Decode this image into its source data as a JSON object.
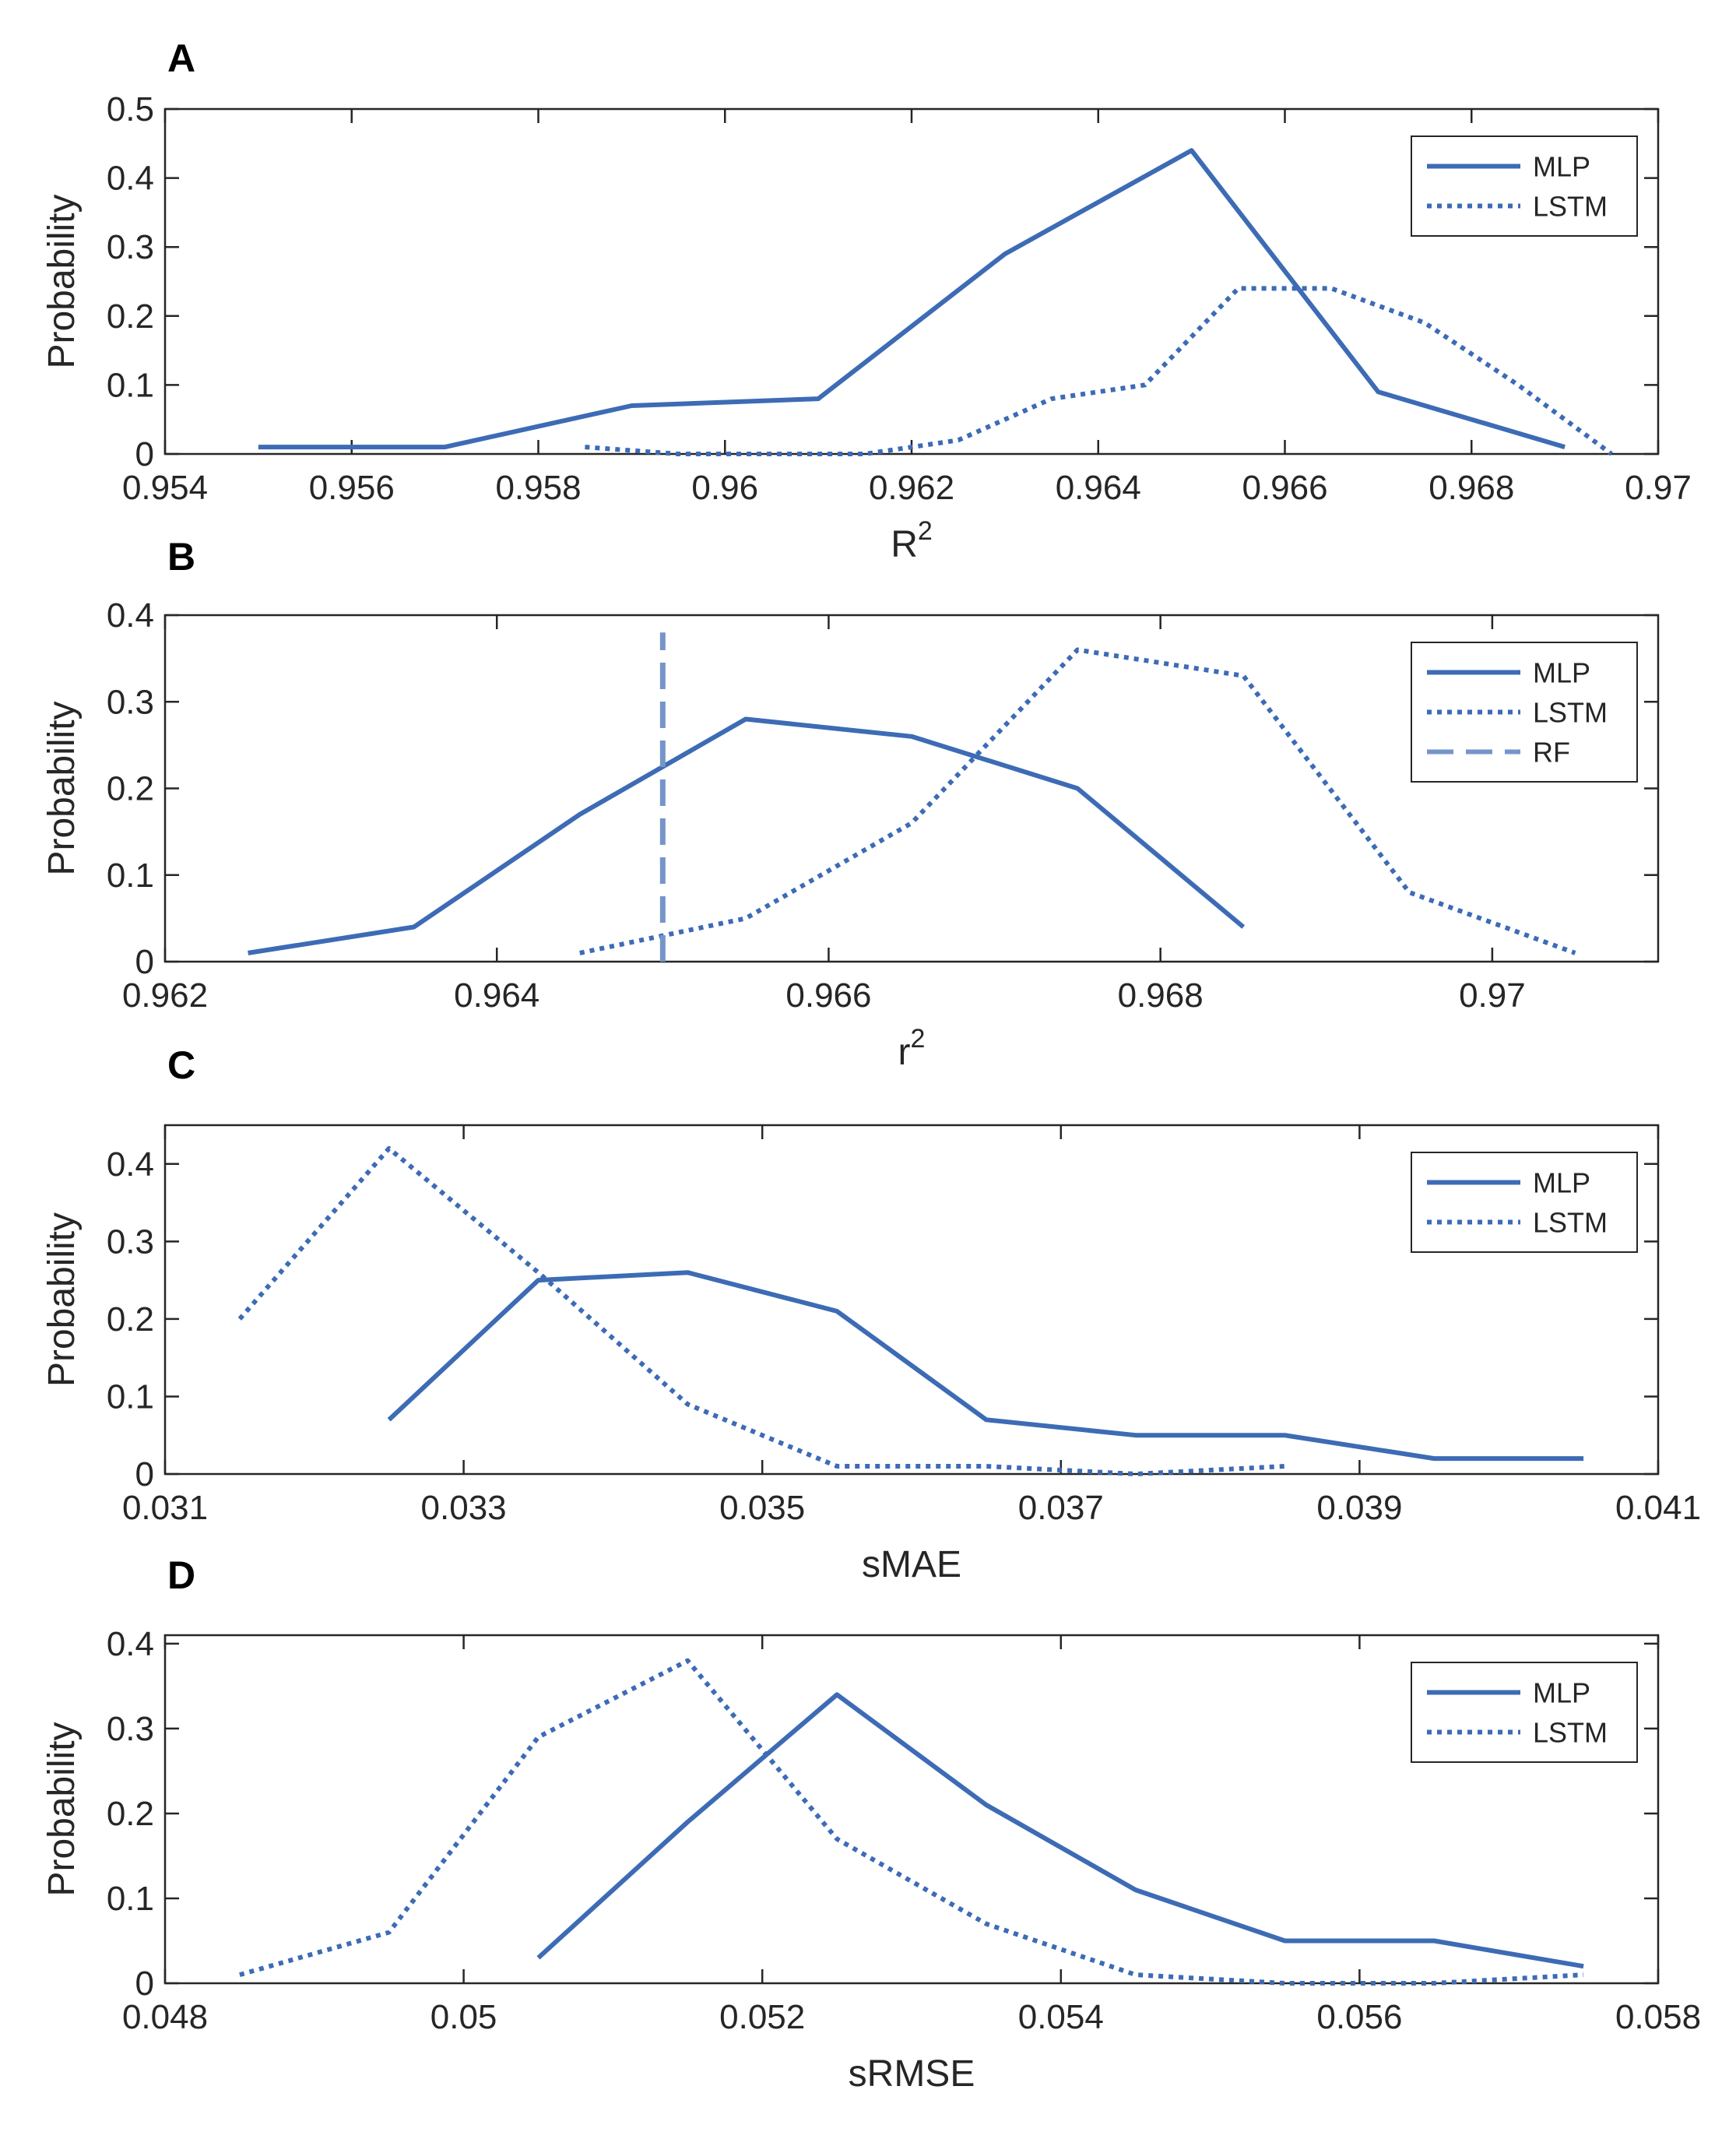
{
  "figure": {
    "name": "probability-distributions-figure"
  },
  "colors": {
    "series": "#3d6bb5",
    "rf": "#7595ca",
    "axis": "#262626"
  },
  "chart_data": [
    {
      "panel": "A",
      "type": "line",
      "xlabel": "R",
      "xlabel_sup": "2",
      "ylabel": "Probability",
      "xlim": [
        0.954,
        0.97
      ],
      "ylim": [
        0,
        0.5
      ],
      "xticks": [
        {
          "v": 0.954,
          "label": "0.954"
        },
        {
          "v": 0.956,
          "label": "0.956"
        },
        {
          "v": 0.958,
          "label": "0.958"
        },
        {
          "v": 0.96,
          "label": "0.96"
        },
        {
          "v": 0.962,
          "label": "0.962"
        },
        {
          "v": 0.964,
          "label": "0.964"
        },
        {
          "v": 0.966,
          "label": "0.966"
        },
        {
          "v": 0.968,
          "label": "0.968"
        },
        {
          "v": 0.97,
          "label": "0.97"
        }
      ],
      "yticks": [
        {
          "v": 0,
          "label": "0"
        },
        {
          "v": 0.1,
          "label": "0.1"
        },
        {
          "v": 0.2,
          "label": "0.2"
        },
        {
          "v": 0.3,
          "label": "0.3"
        },
        {
          "v": 0.4,
          "label": "0.4"
        },
        {
          "v": 0.5,
          "label": "0.5"
        }
      ],
      "legend": "top-right",
      "series": [
        {
          "name": "MLP",
          "style": "solid",
          "x": [
            0.955,
            0.957,
            0.959,
            0.961,
            0.963,
            0.965,
            0.967,
            0.969
          ],
          "y": [
            0.01,
            0.01,
            0.07,
            0.08,
            0.29,
            0.44,
            0.09,
            0.01
          ]
        },
        {
          "name": "LSTM",
          "style": "dotted",
          "x": [
            0.9585,
            0.9595,
            0.9605,
            0.9615,
            0.9625,
            0.9635,
            0.9645,
            0.9655,
            0.9665,
            0.9675,
            0.9685,
            0.9695
          ],
          "y": [
            0.01,
            0.0,
            0.0,
            0.0,
            0.02,
            0.08,
            0.1,
            0.24,
            0.24,
            0.19,
            0.1,
            0.0
          ]
        }
      ]
    },
    {
      "panel": "B",
      "type": "line",
      "xlabel": "r",
      "xlabel_sup": "2",
      "ylabel": "Probability",
      "xlim": [
        0.962,
        0.971
      ],
      "ylim": [
        0,
        0.4
      ],
      "xticks": [
        {
          "v": 0.962,
          "label": "0.962"
        },
        {
          "v": 0.964,
          "label": "0.964"
        },
        {
          "v": 0.966,
          "label": "0.966"
        },
        {
          "v": 0.968,
          "label": "0.968"
        },
        {
          "v": 0.97,
          "label": "0.97"
        }
      ],
      "yticks": [
        {
          "v": 0,
          "label": "0"
        },
        {
          "v": 0.1,
          "label": "0.1"
        },
        {
          "v": 0.2,
          "label": "0.2"
        },
        {
          "v": 0.3,
          "label": "0.3"
        },
        {
          "v": 0.4,
          "label": "0.4"
        }
      ],
      "legend": "top-right",
      "series": [
        {
          "name": "MLP",
          "style": "solid",
          "x": [
            0.9625,
            0.9635,
            0.9645,
            0.9655,
            0.9665,
            0.9675,
            0.9685
          ],
          "y": [
            0.01,
            0.04,
            0.17,
            0.28,
            0.26,
            0.2,
            0.04
          ]
        },
        {
          "name": "LSTM",
          "style": "dotted",
          "x": [
            0.9645,
            0.9655,
            0.9665,
            0.9675,
            0.9685,
            0.9695,
            0.9705
          ],
          "y": [
            0.01,
            0.05,
            0.16,
            0.36,
            0.33,
            0.08,
            0.01
          ]
        },
        {
          "name": "RF",
          "style": "dashed",
          "vline": 0.965,
          "vline_top": 0.38
        }
      ]
    },
    {
      "panel": "C",
      "type": "line",
      "xlabel": "sMAE",
      "xlabel_sup": "",
      "ylabel": "Probability",
      "xlim": [
        0.031,
        0.041
      ],
      "ylim": [
        0,
        0.45
      ],
      "xticks": [
        {
          "v": 0.031,
          "label": "0.031"
        },
        {
          "v": 0.033,
          "label": "0.033"
        },
        {
          "v": 0.035,
          "label": "0.035"
        },
        {
          "v": 0.037,
          "label": "0.037"
        },
        {
          "v": 0.039,
          "label": "0.039"
        },
        {
          "v": 0.041,
          "label": "0.041"
        }
      ],
      "yticks": [
        {
          "v": 0,
          "label": "0"
        },
        {
          "v": 0.1,
          "label": "0.1"
        },
        {
          "v": 0.2,
          "label": "0.2"
        },
        {
          "v": 0.3,
          "label": "0.3"
        },
        {
          "v": 0.4,
          "label": "0.4"
        }
      ],
      "legend": "top-right",
      "series": [
        {
          "name": "MLP",
          "style": "solid",
          "x": [
            0.0325,
            0.0335,
            0.0345,
            0.0355,
            0.0365,
            0.0375,
            0.0385,
            0.0395,
            0.0405
          ],
          "y": [
            0.07,
            0.25,
            0.26,
            0.21,
            0.07,
            0.05,
            0.05,
            0.02,
            0.02
          ]
        },
        {
          "name": "LSTM",
          "style": "dotted",
          "x": [
            0.0315,
            0.0325,
            0.0335,
            0.0345,
            0.0355,
            0.0365,
            0.0375,
            0.0385
          ],
          "y": [
            0.2,
            0.42,
            0.26,
            0.09,
            0.01,
            0.01,
            0.0,
            0.01
          ]
        }
      ]
    },
    {
      "panel": "D",
      "type": "line",
      "xlabel": "sRMSE",
      "xlabel_sup": "",
      "ylabel": "Probability",
      "xlim": [
        0.048,
        0.058
      ],
      "ylim": [
        0,
        0.41
      ],
      "xticks": [
        {
          "v": 0.048,
          "label": "0.048"
        },
        {
          "v": 0.05,
          "label": "0.05"
        },
        {
          "v": 0.052,
          "label": "0.052"
        },
        {
          "v": 0.054,
          "label": "0.054"
        },
        {
          "v": 0.056,
          "label": "0.056"
        },
        {
          "v": 0.058,
          "label": "0.058"
        }
      ],
      "yticks": [
        {
          "v": 0,
          "label": "0"
        },
        {
          "v": 0.1,
          "label": "0.1"
        },
        {
          "v": 0.2,
          "label": "0.2"
        },
        {
          "v": 0.3,
          "label": "0.3"
        },
        {
          "v": 0.4,
          "label": "0.4"
        }
      ],
      "legend": "top-right",
      "series": [
        {
          "name": "MLP",
          "style": "solid",
          "x": [
            0.0505,
            0.0515,
            0.0525,
            0.0535,
            0.0545,
            0.0555,
            0.0565,
            0.0575
          ],
          "y": [
            0.03,
            0.19,
            0.34,
            0.21,
            0.11,
            0.05,
            0.05,
            0.02
          ]
        },
        {
          "name": "LSTM",
          "style": "dotted",
          "x": [
            0.0485,
            0.0495,
            0.0505,
            0.0515,
            0.0525,
            0.0535,
            0.0545,
            0.0555,
            0.0565,
            0.0575
          ],
          "y": [
            0.01,
            0.06,
            0.29,
            0.38,
            0.17,
            0.07,
            0.01,
            0.0,
            0.0,
            0.01
          ]
        }
      ]
    }
  ]
}
